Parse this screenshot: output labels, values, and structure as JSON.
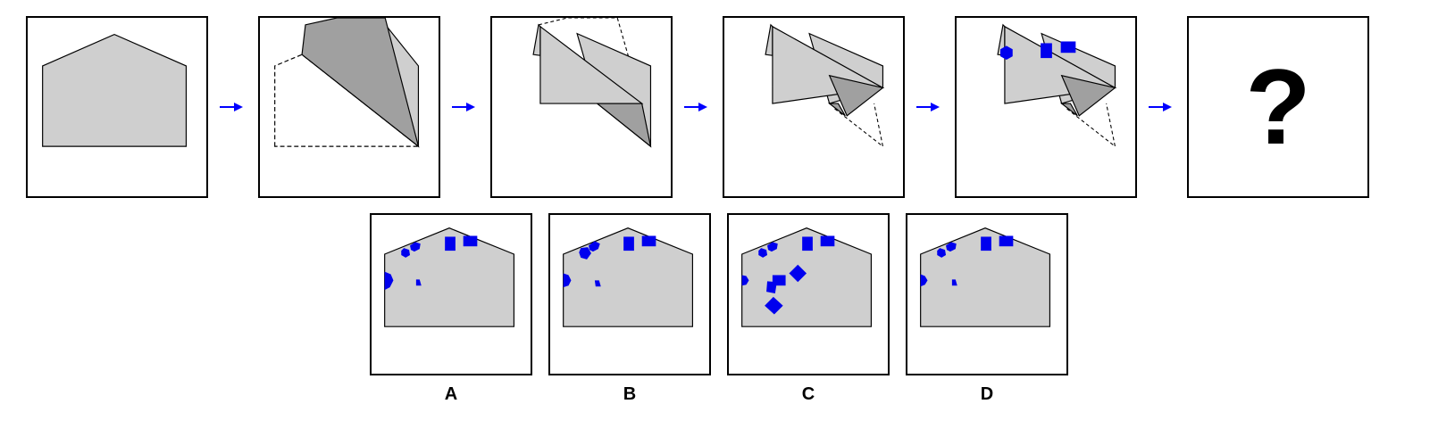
{
  "question_mark": "?",
  "options": [
    {
      "label": "A"
    },
    {
      "label": "B"
    },
    {
      "label": "C"
    },
    {
      "label": "D"
    }
  ],
  "colors": {
    "paper": "#cfcfcf",
    "paper_dark": "#a0a0a0",
    "mark": "#0000ee",
    "arrow": "#0000ff",
    "outline": "#000000"
  }
}
